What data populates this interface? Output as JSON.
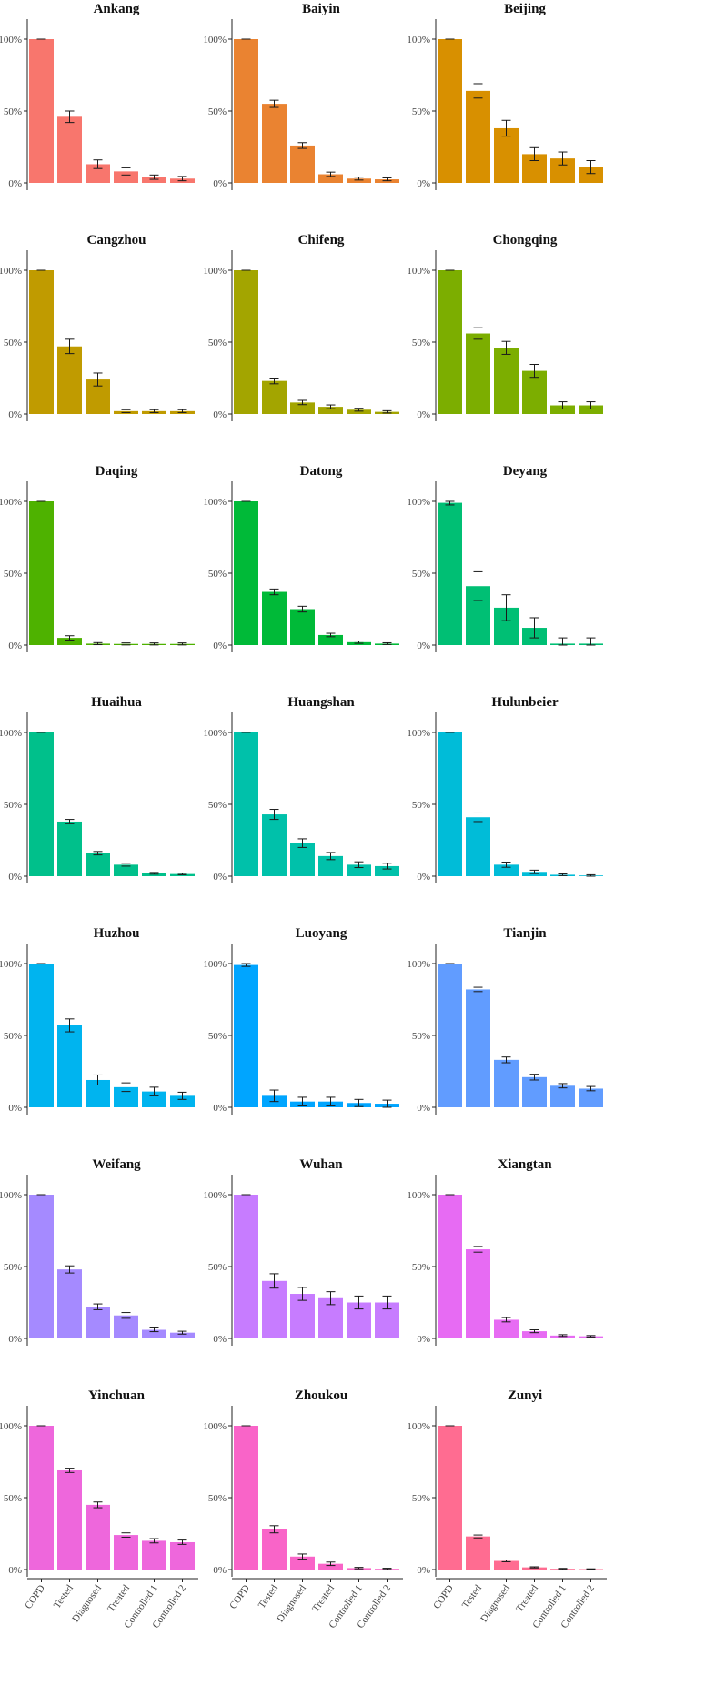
{
  "chart_data": {
    "type": "bar",
    "layout": "facet-grid-7x3",
    "categories": [
      "COPD",
      "Tested",
      "Diagnosed",
      "Treated",
      "Controlled 1",
      "Controlled 2"
    ],
    "ylim": [
      0,
      100
    ],
    "yticks": [
      0,
      50,
      100
    ],
    "ytick_labels": [
      "0%",
      "50%",
      "100%"
    ],
    "grid": false,
    "legend": "none",
    "panels": [
      {
        "title": "Ankang",
        "color": "#F8766D",
        "values": [
          100,
          46,
          13,
          8,
          4,
          3
        ],
        "errors": [
          0,
          4,
          3,
          2.5,
          1.5,
          1.5
        ]
      },
      {
        "title": "Baiyin",
        "color": "#EA8331",
        "values": [
          100,
          55,
          26,
          6,
          3,
          2.5
        ],
        "errors": [
          0,
          2.5,
          2,
          1.5,
          1,
          1
        ]
      },
      {
        "title": "Beijing",
        "color": "#D89000",
        "values": [
          100,
          64,
          38,
          20,
          17,
          11
        ],
        "errors": [
          0,
          5,
          5.5,
          4.5,
          4.5,
          4.5
        ]
      },
      {
        "title": "Cangzhou",
        "color": "#C09B00",
        "values": [
          100,
          47,
          24,
          2,
          2,
          2
        ],
        "errors": [
          0,
          5,
          4.5,
          1,
          1,
          1
        ]
      },
      {
        "title": "Chifeng",
        "color": "#A3A500",
        "values": [
          100,
          23,
          8,
          5,
          3,
          1.5
        ],
        "errors": [
          0,
          2,
          1.5,
          1.3,
          1,
          0.8
        ]
      },
      {
        "title": "Chongqing",
        "color": "#7CAE00",
        "values": [
          100,
          56,
          46,
          30,
          6,
          6
        ],
        "errors": [
          0,
          4,
          4.5,
          4.5,
          2.5,
          2.5
        ]
      },
      {
        "title": "Daqing",
        "color": "#4EB200",
        "values": [
          100,
          5,
          1,
          0.8,
          0.8,
          0.8
        ],
        "errors": [
          0,
          1.5,
          0.7,
          0.7,
          0.7,
          0.7
        ]
      },
      {
        "title": "Datong",
        "color": "#00BA38",
        "values": [
          100,
          37,
          25,
          7,
          2,
          1
        ],
        "errors": [
          0,
          2,
          2,
          1.2,
          0.8,
          0.6
        ]
      },
      {
        "title": "Deyang",
        "color": "#00BF74",
        "values": [
          99,
          41,
          26,
          12,
          1,
          1
        ],
        "errors": [
          1.5,
          10,
          9,
          7,
          4,
          4
        ]
      },
      {
        "title": "Huaihua",
        "color": "#00C08B",
        "values": [
          100,
          38,
          16,
          8,
          2,
          1.5
        ],
        "errors": [
          0,
          1.5,
          1.2,
          1,
          0.6,
          0.5
        ]
      },
      {
        "title": "Huangshan",
        "color": "#00C1AA",
        "values": [
          100,
          43,
          23,
          14,
          8,
          7
        ],
        "errors": [
          0,
          3.5,
          3,
          2.5,
          2,
          2
        ]
      },
      {
        "title": "Hulunbeier",
        "color": "#00BCD8",
        "values": [
          100,
          41,
          8,
          3,
          1,
          0.5
        ],
        "errors": [
          0,
          3,
          1.8,
          1.2,
          0.6,
          0.5
        ]
      },
      {
        "title": "Huzhou",
        "color": "#00B4EF",
        "values": [
          100,
          57,
          19,
          14,
          11,
          8
        ],
        "errors": [
          0,
          4.5,
          3.5,
          3,
          3,
          2.5
        ]
      },
      {
        "title": "Luoyang",
        "color": "#00A5FF",
        "values": [
          99,
          8,
          4,
          4,
          3,
          2.5
        ],
        "errors": [
          1,
          4,
          3,
          3,
          2.5,
          2.5
        ]
      },
      {
        "title": "Tianjin",
        "color": "#619CFF",
        "values": [
          100,
          82,
          33,
          21,
          15,
          13
        ],
        "errors": [
          0,
          1.5,
          2,
          2,
          1.5,
          1.5
        ]
      },
      {
        "title": "Weifang",
        "color": "#A58AFF",
        "values": [
          100,
          48,
          22,
          16,
          6,
          4
        ],
        "errors": [
          0,
          2.5,
          2,
          2,
          1.3,
          1
        ]
      },
      {
        "title": "Wuhan",
        "color": "#C77CFF",
        "values": [
          100,
          40,
          31,
          28,
          25,
          25
        ],
        "errors": [
          0,
          5,
          4.5,
          4.5,
          4.5,
          4.5
        ]
      },
      {
        "title": "Xiangtan",
        "color": "#E76BF3",
        "values": [
          100,
          62,
          13,
          5,
          2,
          1.5
        ],
        "errors": [
          0,
          2,
          1.5,
          1,
          0.6,
          0.5
        ]
      },
      {
        "title": "Yinchuan",
        "color": "#EE67DC",
        "values": [
          100,
          69,
          45,
          24,
          20,
          19
        ],
        "errors": [
          0,
          1.5,
          2,
          1.5,
          1.5,
          1.5
        ]
      },
      {
        "title": "Zhoukou",
        "color": "#F964C8",
        "values": [
          100,
          28,
          9,
          4,
          1,
          0.5
        ],
        "errors": [
          0,
          2.5,
          1.8,
          1.2,
          0.5,
          0.4
        ]
      },
      {
        "title": "Zunyi",
        "color": "#FF6C91",
        "values": [
          100,
          23,
          6,
          1.5,
          0.5,
          0.3
        ],
        "errors": [
          0,
          1,
          0.6,
          0.4,
          0.3,
          0.2
        ]
      }
    ]
  }
}
